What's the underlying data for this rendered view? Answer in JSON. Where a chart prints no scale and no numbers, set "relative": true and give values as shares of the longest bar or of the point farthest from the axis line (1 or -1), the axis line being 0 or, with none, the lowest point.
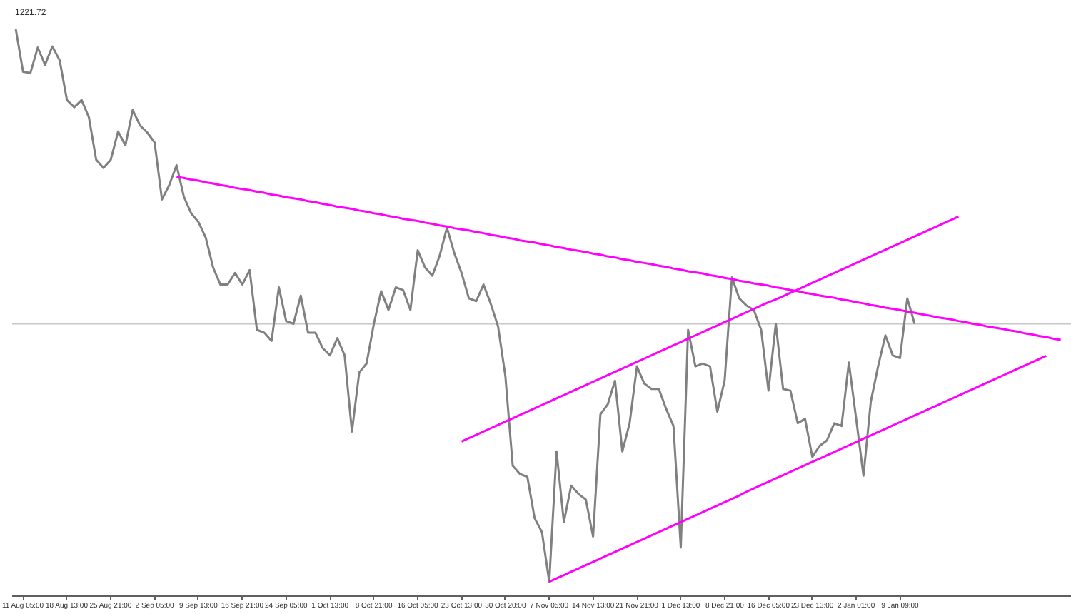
{
  "chart_data": {
    "type": "line",
    "relative": true,
    "grid": false,
    "line_style": "solid",
    "annotations": [
      "1221.72"
    ],
    "categories": [
      null,
      "11 Aug 05:00",
      null,
      null,
      null,
      null,
      null,
      "18 Aug 13:00",
      null,
      null,
      null,
      null,
      null,
      "25 Aug 21:00",
      null,
      null,
      null,
      null,
      null,
      "2 Sep 05:00",
      null,
      null,
      null,
      null,
      null,
      "9 Sep 13:00",
      null,
      null,
      null,
      null,
      null,
      "16 Sep 21:00",
      null,
      null,
      null,
      null,
      null,
      "24 Sep 05:00",
      null,
      null,
      null,
      null,
      null,
      "1 Oct 13:00",
      null,
      null,
      null,
      null,
      null,
      "8 Oct 21:00",
      null,
      null,
      null,
      null,
      null,
      "16 Oct 05:00",
      null,
      null,
      null,
      null,
      null,
      "23 Oct 13:00",
      null,
      null,
      null,
      null,
      null,
      "30 Oct 20:00",
      null,
      null,
      null,
      null,
      null,
      "7 Nov 05:00",
      null,
      null,
      null,
      null,
      null,
      "14 Nov 13:00",
      null,
      null,
      null,
      null,
      null,
      "21 Nov 21:00",
      null,
      null,
      null,
      null,
      null,
      "1 Dec 13:00",
      null,
      null,
      null,
      null,
      null,
      "8 Dec 21:00",
      null,
      null,
      null,
      null,
      null,
      "16 Dec 05:00",
      null,
      null,
      null,
      null,
      null,
      "23 Dec 13:00",
      null,
      null,
      null,
      null,
      null,
      "2 Jan 01:00",
      null,
      null,
      null,
      null,
      null,
      "9 Jan 09:00",
      null,
      null,
      null,
      null,
      null,
      null,
      null,
      null,
      null,
      null,
      null,
      null,
      null,
      null,
      null,
      null,
      null,
      null,
      null,
      null,
      null,
      null,
      null
    ],
    "ref_lines": [
      {
        "axis": "y",
        "value": 0.467,
        "color": "#c8c8c8"
      }
    ],
    "series": [
      {
        "color": "#808080",
        "values": [
          1.0,
          0.923,
          0.921,
          0.967,
          0.936,
          0.969,
          0.944,
          0.872,
          0.859,
          0.872,
          0.841,
          0.764,
          0.749,
          0.764,
          0.815,
          0.79,
          0.854,
          0.826,
          0.813,
          0.795,
          0.692,
          0.718,
          0.754,
          0.697,
          0.667,
          0.651,
          0.623,
          0.569,
          0.538,
          0.538,
          0.559,
          0.538,
          0.564,
          0.456,
          0.451,
          0.436,
          0.533,
          0.472,
          0.467,
          0.518,
          0.451,
          0.451,
          0.423,
          0.41,
          0.441,
          0.41,
          0.272,
          0.379,
          0.395,
          0.467,
          0.526,
          0.492,
          0.533,
          0.528,
          0.492,
          0.6,
          0.569,
          0.554,
          0.59,
          0.641,
          0.595,
          0.559,
          0.513,
          0.508,
          0.538,
          0.503,
          0.462,
          0.372,
          0.21,
          0.195,
          0.19,
          0.115,
          0.09,
          0,
          0.236,
          0.108,
          0.174,
          0.159,
          0.149,
          0.082,
          0.303,
          0.321,
          0.364,
          0.236,
          0.287,
          0.39,
          0.359,
          0.349,
          0.349,
          0.313,
          0.282,
          0.062,
          0.456,
          0.39,
          0.395,
          0.39,
          0.308,
          0.364,
          0.551,
          0.513,
          0.5,
          0.492,
          0.456,
          0.346,
          0.467,
          0.349,
          0.346,
          0.287,
          0.295,
          0.226,
          0.246,
          0.256,
          0.287,
          0.282,
          0.397,
          0.295,
          0.192,
          0.326,
          0.39,
          0.446,
          0.41,
          0.405,
          0.513,
          0.467,
          null,
          null,
          null,
          null,
          null,
          null,
          null,
          null,
          null,
          null,
          null,
          null,
          null,
          null,
          null,
          null,
          null,
          null,
          null,
          null,
          null
        ]
      },
      {
        "type": "line",
        "color": "#ff00ff",
        "values": [
          null,
          null,
          null,
          null,
          null,
          null,
          null,
          null,
          null,
          null,
          null,
          null,
          null,
          null,
          null,
          null,
          null,
          null,
          null,
          null,
          null,
          null,
          0.733,
          0.731,
          0.728,
          0.726,
          0.723,
          0.721,
          0.718,
          0.716,
          0.713,
          0.711,
          0.709,
          0.706,
          0.704,
          0.701,
          0.699,
          0.696,
          0.694,
          0.692,
          0.689,
          0.687,
          0.684,
          0.682,
          0.679,
          0.677,
          0.675,
          0.672,
          0.67,
          0.667,
          0.665,
          0.662,
          0.66,
          0.657,
          0.655,
          0.653,
          0.65,
          0.648,
          0.645,
          0.643,
          0.64,
          0.638,
          0.636,
          0.633,
          0.631,
          0.628,
          0.626,
          0.623,
          0.621,
          0.618,
          0.616,
          0.614,
          0.611,
          0.609,
          0.606,
          0.604,
          0.601,
          0.599,
          0.597,
          0.594,
          0.592,
          0.589,
          0.587,
          0.584,
          0.582,
          0.579,
          0.577,
          0.575,
          0.572,
          0.57,
          0.567,
          0.565,
          0.562,
          0.56,
          0.558,
          0.555,
          0.553,
          0.55,
          0.548,
          0.545,
          0.543,
          0.54,
          0.538,
          0.536,
          0.533,
          0.531,
          0.528,
          0.526,
          0.523,
          0.521,
          0.518,
          0.516,
          0.514,
          0.511,
          0.509,
          0.506,
          0.504,
          0.501,
          0.499,
          0.496,
          0.494,
          0.492,
          0.489,
          0.487,
          0.484,
          0.482,
          0.479,
          0.477,
          0.475,
          0.472,
          0.47,
          0.467,
          0.465,
          0.462,
          0.46,
          0.458,
          0.455,
          0.453,
          0.45,
          0.448,
          0.445,
          0.443,
          0.44,
          0.438,
          null
        ]
      },
      {
        "type": "line",
        "color": "#ff00ff",
        "values": [
          null,
          null,
          null,
          null,
          null,
          null,
          null,
          null,
          null,
          null,
          null,
          null,
          null,
          null,
          null,
          null,
          null,
          null,
          null,
          null,
          null,
          null,
          null,
          null,
          null,
          null,
          null,
          null,
          null,
          null,
          null,
          null,
          null,
          null,
          null,
          null,
          null,
          null,
          null,
          null,
          null,
          null,
          null,
          null,
          null,
          null,
          null,
          null,
          null,
          null,
          null,
          null,
          null,
          null,
          null,
          null,
          null,
          null,
          null,
          null,
          null,
          0.254,
          0.26,
          0.266,
          0.272,
          0.278,
          0.284,
          0.29,
          0.296,
          0.302,
          0.308,
          0.314,
          0.32,
          0.326,
          0.332,
          0.338,
          0.344,
          0.35,
          0.356,
          0.362,
          0.368,
          0.374,
          0.38,
          0.386,
          0.392,
          0.398,
          0.404,
          0.41,
          0.416,
          0.422,
          0.428,
          0.434,
          0.44,
          0.446,
          0.452,
          0.458,
          0.464,
          0.47,
          0.476,
          0.482,
          0.488,
          0.494,
          0.5,
          0.506,
          0.511,
          0.517,
          0.523,
          0.529,
          0.535,
          0.541,
          0.547,
          0.553,
          0.559,
          0.565,
          0.571,
          0.577,
          0.583,
          0.589,
          0.595,
          0.601,
          0.607,
          0.613,
          0.619,
          0.625,
          0.631,
          0.637,
          0.643,
          0.649,
          0.655,
          0.661,
          null,
          null,
          null,
          null,
          null,
          null,
          null,
          null,
          null,
          null,
          null,
          null,
          null,
          null,
          null
        ]
      },
      {
        "type": "line",
        "color": "#ff00ff",
        "values": [
          null,
          null,
          null,
          null,
          null,
          null,
          null,
          null,
          null,
          null,
          null,
          null,
          null,
          null,
          null,
          null,
          null,
          null,
          null,
          null,
          null,
          null,
          null,
          null,
          null,
          null,
          null,
          null,
          null,
          null,
          null,
          null,
          null,
          null,
          null,
          null,
          null,
          null,
          null,
          null,
          null,
          null,
          null,
          null,
          null,
          null,
          null,
          null,
          null,
          null,
          null,
          null,
          null,
          null,
          null,
          null,
          null,
          null,
          null,
          null,
          null,
          null,
          null,
          null,
          null,
          null,
          null,
          null,
          null,
          null,
          null,
          null,
          null,
          0,
          0.006,
          0.012,
          0.018,
          0.024,
          0.03,
          0.036,
          0.042,
          0.048,
          0.054,
          0.06,
          0.066,
          0.072,
          0.078,
          0.084,
          0.09,
          0.096,
          0.102,
          0.108,
          0.114,
          0.12,
          0.126,
          0.132,
          0.138,
          0.144,
          0.15,
          0.156,
          0.163,
          0.169,
          0.175,
          0.181,
          0.187,
          0.193,
          0.199,
          0.205,
          0.211,
          0.217,
          0.223,
          0.229,
          0.235,
          0.241,
          0.247,
          0.253,
          0.259,
          0.265,
          0.271,
          0.277,
          0.283,
          0.289,
          0.295,
          0.301,
          0.307,
          0.313,
          0.319,
          0.325,
          0.331,
          0.337,
          0.343,
          0.349,
          0.355,
          0.361,
          0.367,
          0.373,
          0.379,
          0.385,
          0.391,
          0.397,
          0.403,
          0.409,
          null,
          null,
          null
        ]
      }
    ]
  }
}
